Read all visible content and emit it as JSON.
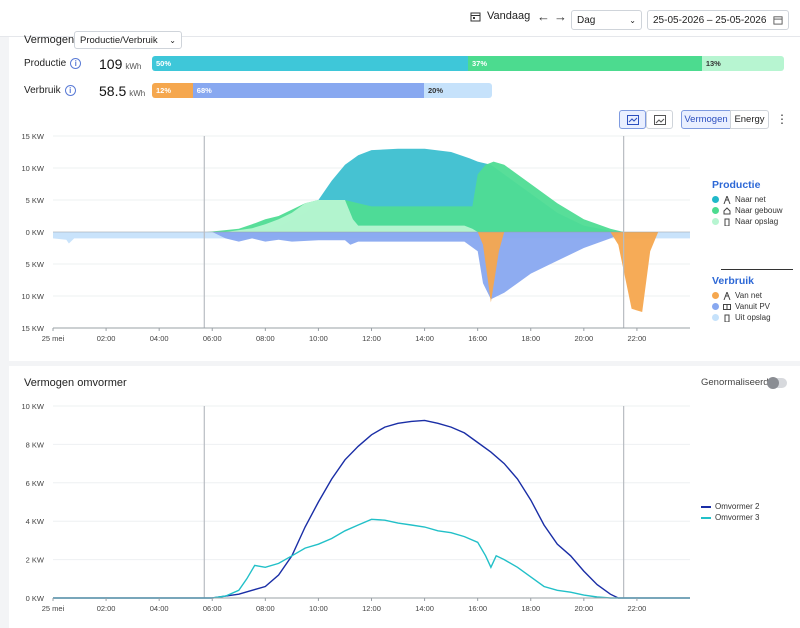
{
  "topbar": {
    "today_label": "Vandaag",
    "period_value": "Dag",
    "date_range": "25-05-2026 – 25-05-2026"
  },
  "overview": {
    "mode_label": "Vermogen",
    "mode_value": "Productie/Verbruik",
    "production": {
      "label": "Productie",
      "value": "109",
      "unit": "kWh",
      "segments": [
        {
          "label": "50%",
          "value": 50,
          "color": "#3ec7d9"
        },
        {
          "label": "37%",
          "value": 37,
          "color": "#4cdb8f"
        },
        {
          "label": "13%",
          "value": 13,
          "color": "#b7f5d1"
        }
      ]
    },
    "consumption": {
      "label": "Verbruik",
      "value": "58.5",
      "unit": "kWh",
      "segments": [
        {
          "label": "12%",
          "value": 12,
          "color": "#f5a74e"
        },
        {
          "label": "68%",
          "value": 68,
          "color": "#88a8f0"
        },
        {
          "label": "20%",
          "value": 20,
          "color": "#c6e2fb"
        }
      ]
    },
    "view_toggle": {
      "vermogen": "Vermogen",
      "energy": "Energy"
    }
  },
  "chart_data": [
    {
      "type": "area",
      "x_ticks": [
        "25 mei",
        "02:00",
        "04:00",
        "06:00",
        "08:00",
        "10:00",
        "12:00",
        "14:00",
        "16:00",
        "18:00",
        "20:00",
        "22:00"
      ],
      "y_ticks": [
        "15 KW",
        "10 KW",
        "5 KW",
        "0 KW",
        "5 KW",
        "10 KW",
        "15 KW"
      ],
      "ylim": [
        -15,
        15
      ],
      "xlim_hours": [
        0,
        24
      ],
      "markers_hours": [
        5.7,
        21.5
      ],
      "legend": {
        "production_title": "Productie",
        "production_items": [
          {
            "label": "Naar net",
            "color": "#20b8c9",
            "icon": "grid-tower-icon"
          },
          {
            "label": "Naar gebouw",
            "color": "#4cdb8f",
            "icon": "house-icon"
          },
          {
            "label": "Naar opslag",
            "color": "#b7f5d1",
            "icon": "battery-icon"
          }
        ],
        "consumption_title": "Verbruik",
        "consumption_items": [
          {
            "label": "Van net",
            "color": "#f5a74e",
            "icon": "grid-tower-icon"
          },
          {
            "label": "Vanuit PV",
            "color": "#88a8f0",
            "icon": "solar-panel-icon"
          },
          {
            "label": "Uit opslag",
            "color": "#c6e2fb",
            "icon": "battery-icon"
          }
        ]
      },
      "series": [
        {
          "name": "Naar net",
          "color": "#3cbfd0",
          "points": [
            [
              0,
              0
            ],
            [
              6,
              0
            ],
            [
              7.5,
              0.2
            ],
            [
              8.5,
              0.8
            ],
            [
              9.5,
              3
            ],
            [
              10,
              5
            ],
            [
              10.5,
              8
            ],
            [
              11,
              10.5
            ],
            [
              11.5,
              12
            ],
            [
              12,
              12.8
            ],
            [
              13,
              13
            ],
            [
              14,
              13
            ],
            [
              15,
              12.5
            ],
            [
              15.7,
              11.5
            ],
            [
              16,
              11
            ],
            [
              16.5,
              10.5
            ],
            [
              17,
              9
            ],
            [
              18,
              6
            ],
            [
              19,
              3
            ],
            [
              20,
              1
            ],
            [
              21,
              0.2
            ],
            [
              21.5,
              0
            ],
            [
              24,
              0
            ]
          ]
        },
        {
          "name": "Naar gebouw",
          "color": "#4fdc93",
          "points": [
            [
              0,
              0
            ],
            [
              5.8,
              0
            ],
            [
              6.5,
              0.3
            ],
            [
              7,
              0.5
            ],
            [
              7.5,
              1.2
            ],
            [
              8,
              2
            ],
            [
              8.5,
              2.5
            ],
            [
              9,
              3.5
            ],
            [
              9.5,
              4.5
            ],
            [
              10,
              5
            ],
            [
              11,
              5
            ],
            [
              11.5,
              4.5
            ],
            [
              12,
              4
            ],
            [
              13,
              4
            ],
            [
              14,
              4
            ],
            [
              15,
              4
            ],
            [
              15.8,
              4
            ],
            [
              16,
              9
            ],
            [
              16.3,
              10.5
            ],
            [
              16.6,
              11
            ],
            [
              17,
              10.5
            ],
            [
              18,
              7.5
            ],
            [
              19,
              4.5
            ],
            [
              20,
              2
            ],
            [
              21,
              0.5
            ],
            [
              21.5,
              0
            ],
            [
              24,
              0
            ]
          ]
        },
        {
          "name": "Naar opslag",
          "color": "#b7f5d1",
          "points": [
            [
              0,
              0
            ],
            [
              6.5,
              0
            ],
            [
              7,
              0.3
            ],
            [
              7.5,
              0.6
            ],
            [
              8,
              1.2
            ],
            [
              8.5,
              2
            ],
            [
              9,
              3
            ],
            [
              9.5,
              4.5
            ],
            [
              10,
              5
            ],
            [
              11,
              5
            ],
            [
              11.3,
              2
            ],
            [
              11.5,
              1
            ],
            [
              12,
              1
            ],
            [
              14,
              1
            ],
            [
              15.5,
              1
            ],
            [
              15.8,
              0.5
            ],
            [
              16,
              0
            ],
            [
              24,
              0
            ]
          ]
        },
        {
          "name": "Uit opslag",
          "color": "#c6e2fb",
          "points": [
            [
              0,
              -1
            ],
            [
              0.5,
              -1.2
            ],
            [
              0.6,
              -1.8
            ],
            [
              0.8,
              -1
            ],
            [
              2,
              -1
            ],
            [
              4,
              -1
            ],
            [
              6,
              -1
            ],
            [
              24,
              -1
            ]
          ]
        },
        {
          "name": "Vanuit PV",
          "color": "#88a8f0",
          "points": [
            [
              0,
              0
            ],
            [
              6,
              0
            ],
            [
              6.5,
              -1
            ],
            [
              7,
              -1.5
            ],
            [
              7.5,
              -1
            ],
            [
              8,
              -1.5
            ],
            [
              8.5,
              -1.2
            ],
            [
              9,
              -1.5
            ],
            [
              10,
              -1.3
            ],
            [
              11,
              -1.3
            ],
            [
              11.2,
              -2
            ],
            [
              11.5,
              -1.5
            ],
            [
              12,
              -1.5
            ],
            [
              14,
              -1.5
            ],
            [
              15.5,
              -1.5
            ],
            [
              16,
              -3
            ],
            [
              16.2,
              -8
            ],
            [
              16.5,
              -10.5
            ],
            [
              17,
              -9.5
            ],
            [
              17.5,
              -8
            ],
            [
              18,
              -6.5
            ],
            [
              19,
              -4.5
            ],
            [
              20,
              -2.5
            ],
            [
              21,
              -1
            ],
            [
              21.5,
              0
            ],
            [
              24,
              0
            ]
          ]
        },
        {
          "name": "Van net",
          "color": "#f5a74e",
          "points": [
            [
              0,
              0
            ],
            [
              16,
              0
            ],
            [
              16.2,
              -2
            ],
            [
              16.5,
              -11
            ],
            [
              16.8,
              -3
            ],
            [
              17,
              0
            ],
            [
              21,
              0
            ],
            [
              21.3,
              -2
            ],
            [
              21.8,
              -12
            ],
            [
              22.2,
              -12.5
            ],
            [
              22.5,
              -3
            ],
            [
              22.8,
              0
            ],
            [
              24,
              0
            ]
          ]
        }
      ]
    },
    {
      "type": "line",
      "title": "Vermogen omvormer",
      "normalized_label": "Genormaliseerd",
      "x_ticks": [
        "25 mei",
        "02:00",
        "04:00",
        "06:00",
        "08:00",
        "10:00",
        "12:00",
        "14:00",
        "16:00",
        "18:00",
        "20:00",
        "22:00"
      ],
      "y_ticks": [
        "10 KW",
        "8 KW",
        "6 KW",
        "4 KW",
        "2 KW",
        "0 KW"
      ],
      "ylim": [
        0,
        10
      ],
      "xlim_hours": [
        0,
        24
      ],
      "markers_hours": [
        5.7,
        21.5
      ],
      "series": [
        {
          "name": "Omvormer 2",
          "color": "#1a2ea6",
          "points": [
            [
              0,
              0
            ],
            [
              6,
              0
            ],
            [
              6.5,
              0.1
            ],
            [
              7,
              0.2
            ],
            [
              7.5,
              0.4
            ],
            [
              8,
              0.6
            ],
            [
              8.5,
              1.2
            ],
            [
              9,
              2.2
            ],
            [
              9.5,
              3.7
            ],
            [
              10,
              5
            ],
            [
              10.5,
              6.2
            ],
            [
              11,
              7.2
            ],
            [
              11.5,
              7.9
            ],
            [
              12,
              8.5
            ],
            [
              12.5,
              8.9
            ],
            [
              13,
              9.1
            ],
            [
              13.5,
              9.2
            ],
            [
              14,
              9.25
            ],
            [
              14.5,
              9.1
            ],
            [
              15,
              8.9
            ],
            [
              15.5,
              8.6
            ],
            [
              16,
              8.1
            ],
            [
              16.5,
              7.6
            ],
            [
              17,
              7
            ],
            [
              17.5,
              6.2
            ],
            [
              18,
              5.1
            ],
            [
              18.5,
              3.8
            ],
            [
              19,
              2.8
            ],
            [
              19.5,
              2.2
            ],
            [
              20,
              1.4
            ],
            [
              20.5,
              0.7
            ],
            [
              21,
              0.2
            ],
            [
              21.3,
              0
            ],
            [
              24,
              0
            ]
          ]
        },
        {
          "name": "Omvormer 3",
          "color": "#22c0c8",
          "points": [
            [
              0,
              0
            ],
            [
              6,
              0
            ],
            [
              6.5,
              0.1
            ],
            [
              7,
              0.4
            ],
            [
              7.3,
              1
            ],
            [
              7.6,
              1.7
            ],
            [
              8,
              1.6
            ],
            [
              8.5,
              1.8
            ],
            [
              9,
              2.2
            ],
            [
              9.5,
              2.6
            ],
            [
              10,
              2.8
            ],
            [
              10.5,
              3.1
            ],
            [
              11,
              3.5
            ],
            [
              11.5,
              3.8
            ],
            [
              12,
              4.1
            ],
            [
              12.5,
              4.05
            ],
            [
              13,
              3.9
            ],
            [
              13.5,
              3.8
            ],
            [
              14,
              3.7
            ],
            [
              14.5,
              3.5
            ],
            [
              15,
              3.4
            ],
            [
              15.5,
              3.2
            ],
            [
              16,
              2.9
            ],
            [
              16.3,
              2.2
            ],
            [
              16.5,
              1.6
            ],
            [
              16.7,
              2.2
            ],
            [
              17,
              2
            ],
            [
              17.5,
              1.6
            ],
            [
              18,
              1.1
            ],
            [
              18.5,
              0.6
            ],
            [
              19,
              0.4
            ],
            [
              19.5,
              0.3
            ],
            [
              20,
              0.15
            ],
            [
              20.5,
              0.05
            ],
            [
              21,
              0
            ],
            [
              24,
              0
            ]
          ]
        }
      ]
    }
  ]
}
